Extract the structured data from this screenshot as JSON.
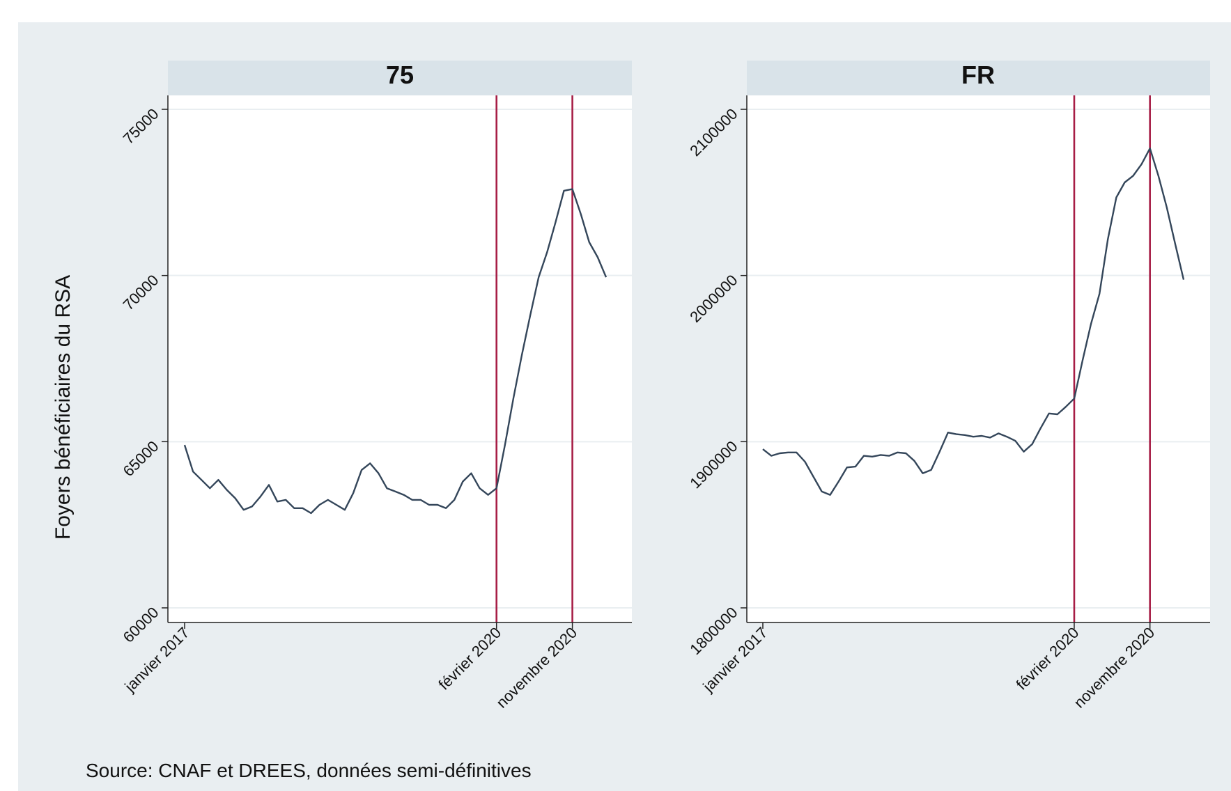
{
  "source_note": "Source: CNAF et DREES, données semi-définitives",
  "ylabel": "Foyers bénéficiaires du RSA",
  "colors": {
    "outer_background": "#e9eef1",
    "plot_background": "#ffffff",
    "strip_background": "#d9e3e9",
    "line": "#34465a",
    "vline": "#a71e46",
    "grid": "#e9eef1"
  },
  "chart_data": [
    {
      "type": "line",
      "panel_title": "75",
      "x_unit": "month",
      "x_start": "janvier 2017",
      "ylim": [
        60000,
        75000
      ],
      "yticks": [
        60000,
        65000,
        70000,
        75000
      ],
      "ytick_labels": [
        "60000",
        "65000",
        "70000",
        "75000"
      ],
      "xticks": [
        {
          "month_index": 0,
          "label": "janvier 2017"
        },
        {
          "month_index": 37,
          "label": "février 2020"
        },
        {
          "month_index": 46,
          "label": "novembre 2020"
        }
      ],
      "vlines": [
        {
          "month_index": 37,
          "label": "février 2020"
        },
        {
          "month_index": 46,
          "label": "novembre 2020"
        }
      ],
      "grid": true,
      "series": [
        {
          "values": [
            64900,
            64100,
            63850,
            63600,
            63850,
            63550,
            63300,
            62950,
            63050,
            63350,
            63700,
            63200,
            63250,
            63000,
            63000,
            62850,
            63100,
            63250,
            63100,
            62950,
            63450,
            64150,
            64350,
            64050,
            63600,
            63500,
            63400,
            63250,
            63250,
            63100,
            63100,
            63000,
            63250,
            63800,
            64050,
            63600,
            63400,
            63600,
            64900,
            66300,
            67600,
            68800,
            69950,
            70700,
            71600,
            72550,
            72600,
            71850,
            71000,
            70550,
            69950
          ]
        }
      ]
    },
    {
      "type": "line",
      "panel_title": "FR",
      "x_unit": "month",
      "x_start": "janvier 2017",
      "ylim": [
        1800000,
        2100000
      ],
      "yticks": [
        1800000,
        1900000,
        2000000,
        2100000
      ],
      "ytick_labels": [
        "1800000",
        "1900000",
        "2000000",
        "2100000"
      ],
      "xticks": [
        {
          "month_index": 0,
          "label": "janvier 2017"
        },
        {
          "month_index": 37,
          "label": "février 2020"
        },
        {
          "month_index": 46,
          "label": "novembre 2020"
        }
      ],
      "vlines": [
        {
          "month_index": 37,
          "label": "février 2020"
        },
        {
          "month_index": 46,
          "label": "novembre 2020"
        }
      ],
      "grid": true,
      "series": [
        {
          "values": [
            1895500,
            1891500,
            1893000,
            1893500,
            1893500,
            1888000,
            1879000,
            1870000,
            1868000,
            1876000,
            1884500,
            1885000,
            1891500,
            1891000,
            1892000,
            1891500,
            1893500,
            1893000,
            1888500,
            1881000,
            1883000,
            1894000,
            1905500,
            1904500,
            1904000,
            1903000,
            1903500,
            1902500,
            1905000,
            1903000,
            1900500,
            1894000,
            1898500,
            1908000,
            1917000,
            1916500,
            1921000,
            1926000,
            1949000,
            1971000,
            1989000,
            2022000,
            2047000,
            2056000,
            2060000,
            2067000,
            2076500,
            2060000,
            2041000,
            2019000,
            1997500
          ]
        }
      ]
    }
  ]
}
